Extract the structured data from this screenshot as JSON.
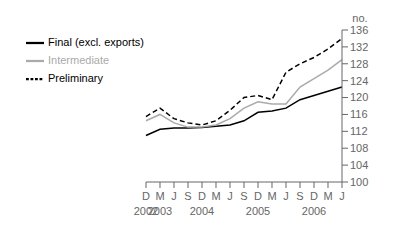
{
  "chart_data": {
    "type": "line",
    "title": "",
    "ylabel": "no.",
    "categories": [
      "D",
      "M",
      "J",
      "S",
      "D",
      "M",
      "J",
      "S",
      "D",
      "M",
      "J",
      "S",
      "D",
      "M",
      "J"
    ],
    "annotations": [
      {
        "text": "2002",
        "x": 0
      },
      {
        "text": "2003",
        "x": 1
      },
      {
        "text": "2004",
        "x": 4
      },
      {
        "text": "2005",
        "x": 8
      },
      {
        "text": "2006",
        "x": 12
      }
    ],
    "series": [
      {
        "name": "Final (excl. exports)",
        "color": "#000000",
        "line_style": "solid",
        "values": [
          111.0,
          112.5,
          112.8,
          112.8,
          112.9,
          113.2,
          113.5,
          114.5,
          116.5,
          116.8,
          117.5,
          119.5,
          120.5,
          121.5,
          122.5
        ]
      },
      {
        "name": "Intermediate",
        "color": "#aaaaaa",
        "line_style": "solid",
        "values": [
          114.5,
          116.0,
          114.0,
          113.0,
          113.0,
          113.5,
          115.0,
          117.5,
          119.0,
          118.5,
          118.5,
          122.5,
          124.5,
          126.5,
          129.0
        ]
      },
      {
        "name": "Preliminary",
        "color": "#000000",
        "line_style": "dashed",
        "values": [
          115.5,
          117.5,
          115.0,
          114.0,
          113.5,
          114.5,
          117.0,
          120.0,
          120.5,
          119.5,
          126.0,
          128.0,
          129.5,
          131.5,
          134.0
        ]
      }
    ],
    "ylim": [
      100,
      136
    ],
    "yticks": [
      100,
      104,
      108,
      112,
      116,
      120,
      124,
      128,
      132,
      136
    ],
    "grid": false,
    "legend": "upper left"
  }
}
